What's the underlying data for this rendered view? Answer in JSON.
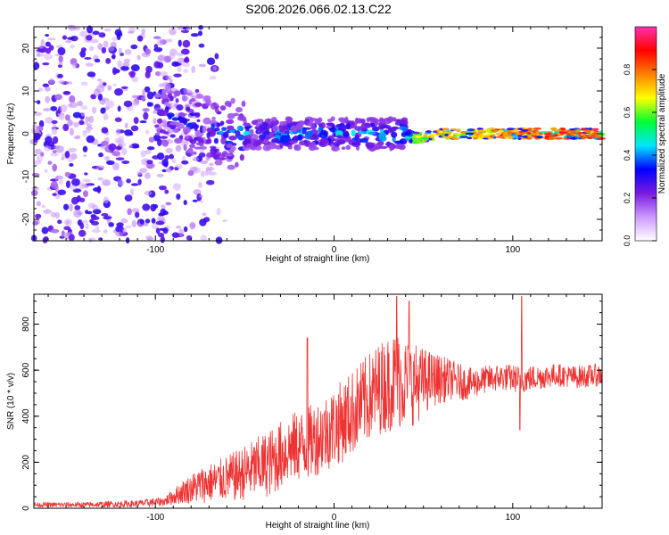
{
  "title": "S206.2026.066.02.13.C22",
  "chart_data": [
    {
      "type": "heatmap",
      "name": "spectrogram",
      "title": "S206.2026.066.02.13.C22",
      "xlabel": "Height of straight line (km)",
      "ylabel": "Frequency (Hz)",
      "xlim": [
        -168,
        150
      ],
      "ylim": [
        -25,
        25
      ],
      "xticks": [
        -100,
        0,
        100
      ],
      "yticks": [
        -20,
        -10,
        0,
        10,
        20
      ],
      "colorbar": {
        "label": "Normalized spectral amplitude",
        "range": [
          0,
          1
        ],
        "ticks": [
          0.0,
          0.2,
          0.4,
          0.6,
          0.8
        ],
        "colormap": [
          "#ffffff",
          "#cc99ff",
          "#7a1ae0",
          "#0000ff",
          "#00e5ff",
          "#00ff33",
          "#ffff00",
          "#ff8000",
          "#ff0000",
          "#ff33aa"
        ]
      },
      "description_points": {
        "band_center_hz": [
          [
            -168,
            0
          ],
          [
            -90,
            4
          ],
          [
            -80,
            2
          ],
          [
            -60,
            0
          ],
          [
            0,
            0
          ],
          [
            40,
            0
          ],
          [
            45,
            -1
          ],
          [
            60,
            0
          ],
          [
            150,
            0
          ]
        ],
        "peak_amplitude": [
          [
            -168,
            0.3
          ],
          [
            -90,
            0.35
          ],
          [
            -60,
            0.45
          ],
          [
            -30,
            0.5
          ],
          [
            0,
            0.5
          ],
          [
            40,
            0.55
          ],
          [
            50,
            0.75
          ],
          [
            100,
            0.85
          ],
          [
            130,
            0.95
          ],
          [
            150,
            0.95
          ]
        ]
      }
    },
    {
      "type": "line",
      "name": "snr",
      "xlabel": "Height of straight line (km)",
      "ylabel": "SNR (10 * v/v)",
      "xlim": [
        -168,
        150
      ],
      "ylim": [
        0,
        930
      ],
      "xticks": [
        -100,
        0,
        100
      ],
      "yticks": [
        0,
        200,
        400,
        600,
        800
      ],
      "color": "#ee3333",
      "envelope": {
        "x": [
          -168,
          -140,
          -110,
          -95,
          -85,
          -75,
          -65,
          -55,
          -45,
          -35,
          -25,
          -15,
          -5,
          5,
          15,
          25,
          35,
          45,
          55,
          65,
          75,
          85,
          95,
          105,
          115,
          125,
          135,
          150
        ],
        "baseline": [
          15,
          15,
          20,
          30,
          70,
          100,
          120,
          140,
          170,
          200,
          260,
          280,
          330,
          380,
          450,
          520,
          560,
          540,
          560,
          560,
          540,
          560,
          570,
          560,
          570,
          580,
          570,
          580
        ],
        "spread": [
          10,
          12,
          15,
          20,
          50,
          80,
          90,
          110,
          130,
          150,
          150,
          160,
          170,
          180,
          190,
          200,
          220,
          180,
          120,
          90,
          70,
          60,
          60,
          60,
          55,
          50,
          50,
          50
        ]
      },
      "spikes": [
        {
          "x": -15,
          "y": 740
        },
        {
          "x": 35,
          "y": 920
        },
        {
          "x": 42,
          "y": 900
        },
        {
          "x": 105,
          "y": 920
        },
        {
          "x": 104,
          "y": 340
        }
      ]
    }
  ]
}
